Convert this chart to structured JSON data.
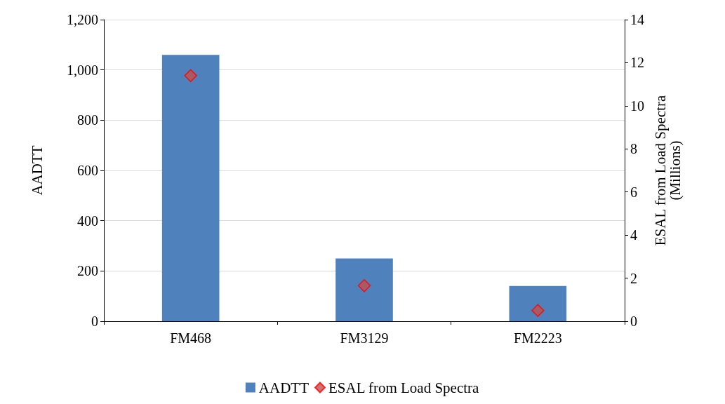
{
  "chart_data": {
    "type": "bar",
    "categories": [
      "FM468",
      "FM3129",
      "FM2223"
    ],
    "series": [
      {
        "name": "AADTT",
        "color": "#4f81bd",
        "values": [
          1060,
          250,
          140
        ]
      },
      {
        "name": "ESAL from Load Spectra",
        "type": "scatter",
        "axis": "y2",
        "color": "#c0504d",
        "marker": "diamond",
        "values": [
          11.4,
          1.65,
          0.5
        ]
      }
    ],
    "ylabel": "AADTT",
    "y2label": "ESAL from Load Spectra\n(Millions)",
    "ylim": [
      0,
      1200
    ],
    "yticks": [
      0,
      200,
      400,
      600,
      800,
      {
        "value": 1000,
        "label": "1,000"
      },
      {
        "value": 1200,
        "label": "1,200"
      }
    ],
    "y2lim": [
      0,
      14
    ],
    "y2ticks": [
      0,
      2,
      4,
      6,
      8,
      10,
      12,
      14
    ],
    "grid": "y",
    "legend": "bottom"
  }
}
